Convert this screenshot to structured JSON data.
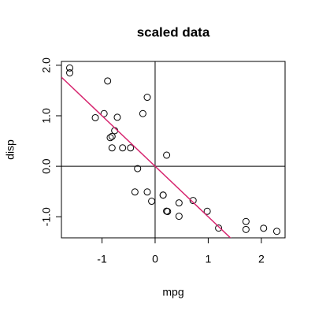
{
  "chart_data": {
    "type": "scatter",
    "title": "scaled data",
    "x_label": "mpg",
    "y_label": "disp",
    "x": [
      0.151,
      0.151,
      0.45,
      0.217,
      -0.231,
      -0.33,
      -0.961,
      0.715,
      0.45,
      -0.148,
      -0.38,
      -0.612,
      -0.463,
      -0.811,
      -1.608,
      -1.608,
      -0.894,
      2.043,
      1.711,
      2.291,
      0.234,
      -0.761,
      -0.811,
      -1.126,
      -0.148,
      1.196,
      0.981,
      1.711,
      -0.712,
      -0.065,
      -0.845,
      0.217
    ],
    "y": [
      -0.571,
      -0.571,
      -0.99,
      0.22,
      1.043,
      -0.046,
      1.043,
      -0.678,
      -0.726,
      -0.509,
      -0.509,
      0.364,
      0.364,
      0.364,
      1.947,
      1.85,
      1.689,
      -1.227,
      -1.251,
      -1.288,
      -0.895,
      0.705,
      0.591,
      0.962,
      1.366,
      -1.224,
      -0.891,
      -1.094,
      0.97,
      -0.692,
      0.567,
      -0.888
    ],
    "point_color": "#000000",
    "xlim": [
      -1.764,
      2.447
    ],
    "ylim": [
      -1.417,
      2.076
    ],
    "xticks": [
      -1,
      0,
      1,
      2
    ],
    "yticks": [
      {
        "value": -1,
        "label": "-1.0"
      },
      {
        "value": 0,
        "label": "0.0"
      },
      {
        "value": 1,
        "label": "1.0"
      },
      {
        "value": 2,
        "label": "2.0"
      }
    ],
    "reference_lines": {
      "h": 0,
      "v": 0,
      "color": "#000000"
    },
    "fit_line": {
      "intercept": 0,
      "slope": -1,
      "color": "#d6246e"
    }
  }
}
